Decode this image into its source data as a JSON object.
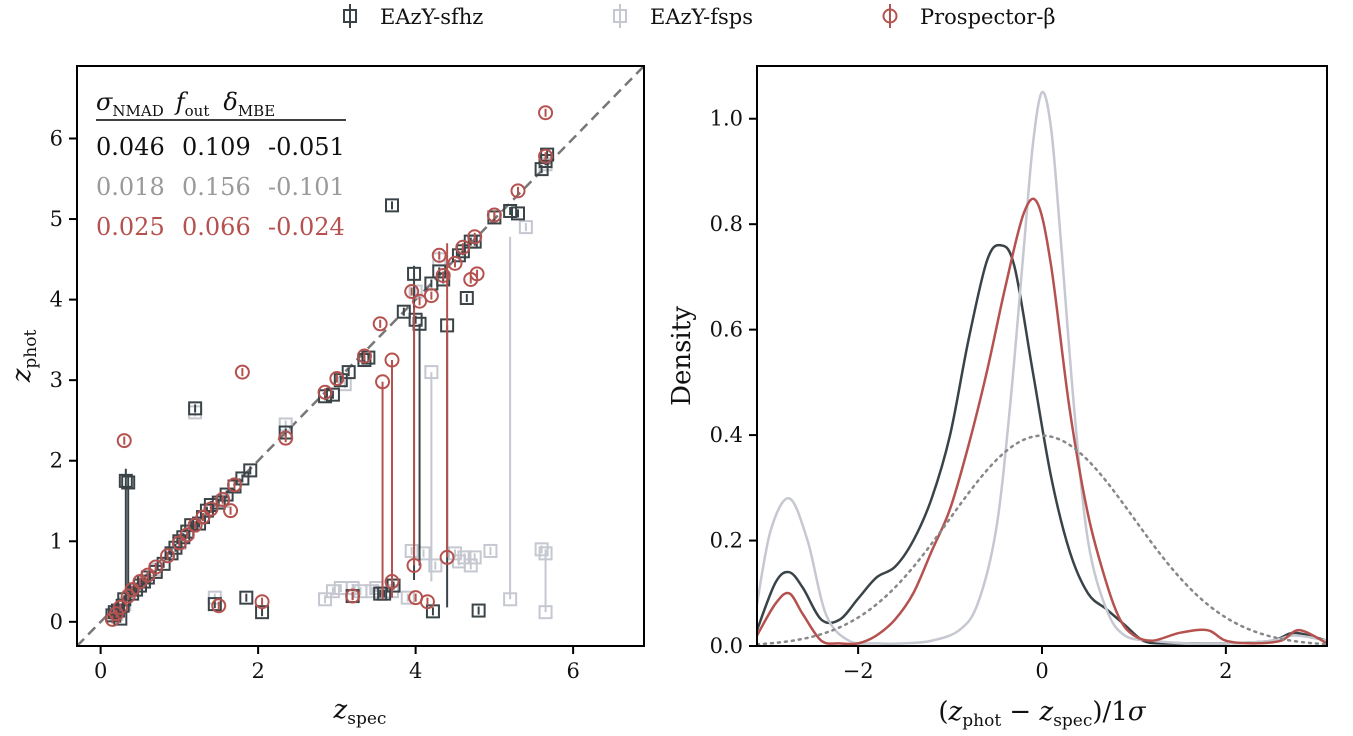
{
  "colors": {
    "sfhz": "#3a4448",
    "fsps": "#c5c8d0",
    "prospector": "#b5524f",
    "diagonal": "#777777",
    "normal": "#888888",
    "stats_header": "#111111"
  },
  "legend": {
    "items": [
      {
        "label": "EAzY-sfhz",
        "marker": "square",
        "color_key": "sfhz"
      },
      {
        "label": "EAzY-fsps",
        "marker": "square",
        "color_key": "fsps"
      },
      {
        "label": "Prospector-β",
        "marker": "circle",
        "color_key": "prospector"
      }
    ]
  },
  "stats": {
    "headers": [
      "σNMAD",
      "fout",
      "δMBE"
    ],
    "rows": [
      {
        "values": [
          "0.046",
          "0.109",
          "-0.051"
        ],
        "color_key": "sfhz"
      },
      {
        "values": [
          "0.018",
          "0.156",
          "-0.101"
        ],
        "color_key": "fsps"
      },
      {
        "values": [
          "0.025",
          "0.066",
          "-0.024"
        ],
        "color_key": "prospector"
      }
    ]
  },
  "chart_data": [
    {
      "type": "scatter",
      "xlabel": "z_spec",
      "ylabel": "z_phot",
      "xlim": [
        -0.3,
        6.9
      ],
      "ylim": [
        -0.3,
        6.9
      ],
      "xticks": [
        "0",
        "2",
        "4",
        "6"
      ],
      "yticks": [
        "0",
        "1",
        "2",
        "3",
        "4",
        "5",
        "6"
      ],
      "diagonal": "1:1 dashed line",
      "series": [
        {
          "name": "EAzY-sfhz",
          "marker": "square",
          "color_key": "sfhz",
          "points": [
            {
              "x": 0.15,
              "y": 0.08
            },
            {
              "x": 0.18,
              "y": 0.12
            },
            {
              "x": 0.22,
              "y": 0.14
            },
            {
              "x": 0.25,
              "y": 0.04
            },
            {
              "x": 0.28,
              "y": 0.2
            },
            {
              "x": 0.3,
              "y": 0.28
            },
            {
              "x": 0.32,
              "y": 1.75,
              "elo": 1.5,
              "ehi": 0.15
            },
            {
              "x": 0.35,
              "y": 1.73,
              "elo": 1.4,
              "ehi": 0.1
            },
            {
              "x": 0.4,
              "y": 0.35
            },
            {
              "x": 0.45,
              "y": 0.4
            },
            {
              "x": 0.5,
              "y": 0.45
            },
            {
              "x": 0.55,
              "y": 0.5
            },
            {
              "x": 0.6,
              "y": 0.55
            },
            {
              "x": 0.7,
              "y": 0.62
            },
            {
              "x": 0.8,
              "y": 0.72
            },
            {
              "x": 0.9,
              "y": 0.85
            },
            {
              "x": 0.95,
              "y": 0.92
            },
            {
              "x": 1.0,
              "y": 1.0
            },
            {
              "x": 1.05,
              "y": 1.05
            },
            {
              "x": 1.1,
              "y": 1.12
            },
            {
              "x": 1.15,
              "y": 1.2
            },
            {
              "x": 1.2,
              "y": 2.65
            },
            {
              "x": 1.25,
              "y": 1.22
            },
            {
              "x": 1.3,
              "y": 1.3
            },
            {
              "x": 1.35,
              "y": 1.38
            },
            {
              "x": 1.4,
              "y": 1.45
            },
            {
              "x": 1.45,
              "y": 0.22
            },
            {
              "x": 1.5,
              "y": 1.48
            },
            {
              "x": 1.6,
              "y": 1.58
            },
            {
              "x": 1.7,
              "y": 1.68
            },
            {
              "x": 1.8,
              "y": 1.78
            },
            {
              "x": 1.85,
              "y": 0.3
            },
            {
              "x": 1.9,
              "y": 1.88
            },
            {
              "x": 2.05,
              "y": 0.12
            },
            {
              "x": 2.35,
              "y": 2.35
            },
            {
              "x": 2.85,
              "y": 2.8
            },
            {
              "x": 2.95,
              "y": 2.82
            },
            {
              "x": 3.05,
              "y": 3.0
            },
            {
              "x": 3.15,
              "y": 3.1
            },
            {
              "x": 3.2,
              "y": 0.32
            },
            {
              "x": 3.35,
              "y": 3.25
            },
            {
              "x": 3.4,
              "y": 3.28
            },
            {
              "x": 3.55,
              "y": 0.35
            },
            {
              "x": 3.6,
              "y": 0.35
            },
            {
              "x": 3.7,
              "y": 5.17
            },
            {
              "x": 3.72,
              "y": 0.45
            },
            {
              "x": 3.85,
              "y": 3.85
            },
            {
              "x": 3.98,
              "y": 4.32,
              "elo": 3.8,
              "ehi": 0.1
            },
            {
              "x": 4.0,
              "y": 3.75
            },
            {
              "x": 4.05,
              "y": 3.7,
              "elo": 3.0,
              "ehi": 0.0
            },
            {
              "x": 4.2,
              "y": 4.2
            },
            {
              "x": 4.22,
              "y": 0.13
            },
            {
              "x": 4.3,
              "y": 4.35
            },
            {
              "x": 4.35,
              "y": 4.25
            },
            {
              "x": 4.4,
              "y": 3.68,
              "elo": 3.5,
              "ehi": 0.0
            },
            {
              "x": 4.55,
              "y": 4.55
            },
            {
              "x": 4.6,
              "y": 4.6
            },
            {
              "x": 4.65,
              "y": 4.02
            },
            {
              "x": 4.7,
              "y": 4.72
            },
            {
              "x": 4.75,
              "y": 4.72
            },
            {
              "x": 4.8,
              "y": 0.14
            },
            {
              "x": 5.0,
              "y": 5.02
            },
            {
              "x": 5.2,
              "y": 5.1
            },
            {
              "x": 5.3,
              "y": 5.07
            },
            {
              "x": 5.6,
              "y": 5.62
            },
            {
              "x": 5.65,
              "y": 5.72
            },
            {
              "x": 5.67,
              "y": 5.8
            }
          ]
        },
        {
          "name": "EAzY-fsps",
          "marker": "square",
          "color_key": "fsps",
          "points": [
            {
              "x": 0.2,
              "y": 0.1
            },
            {
              "x": 0.3,
              "y": 0.22
            },
            {
              "x": 0.5,
              "y": 0.45
            },
            {
              "x": 0.7,
              "y": 0.65
            },
            {
              "x": 1.0,
              "y": 0.98
            },
            {
              "x": 1.2,
              "y": 2.6
            },
            {
              "x": 1.45,
              "y": 0.3
            },
            {
              "x": 1.55,
              "y": 1.5
            },
            {
              "x": 2.35,
              "y": 2.45
            },
            {
              "x": 2.85,
              "y": 0.28
            },
            {
              "x": 2.95,
              "y": 0.38
            },
            {
              "x": 3.05,
              "y": 0.42
            },
            {
              "x": 3.1,
              "y": 2.95
            },
            {
              "x": 3.2,
              "y": 0.42
            },
            {
              "x": 3.3,
              "y": 0.38
            },
            {
              "x": 3.45,
              "y": 0.38
            },
            {
              "x": 3.5,
              "y": 0.42
            },
            {
              "x": 3.7,
              "y": 0.38
            },
            {
              "x": 3.9,
              "y": 0.3
            },
            {
              "x": 3.95,
              "y": 0.88
            },
            {
              "x": 4.0,
              "y": 4.1
            },
            {
              "x": 4.1,
              "y": 0.85
            },
            {
              "x": 4.2,
              "y": 3.1,
              "elo": 2.6,
              "ehi": 0.0
            },
            {
              "x": 4.25,
              "y": 0.7
            },
            {
              "x": 4.3,
              "y": 4.5
            },
            {
              "x": 4.5,
              "y": 0.85
            },
            {
              "x": 4.55,
              "y": 0.75
            },
            {
              "x": 4.62,
              "y": 0.8
            },
            {
              "x": 4.7,
              "y": 0.7
            },
            {
              "x": 4.75,
              "y": 0.8
            },
            {
              "x": 4.95,
              "y": 0.88
            },
            {
              "x": 5.2,
              "y": 0.28,
              "elo": 0.0,
              "ehi": 4.5
            },
            {
              "x": 5.4,
              "y": 4.9
            },
            {
              "x": 5.6,
              "y": 0.9
            },
            {
              "x": 5.65,
              "y": 0.12,
              "elo": 0.0,
              "ehi": 0.7
            },
            {
              "x": 5.65,
              "y": 0.85
            },
            {
              "x": 5.65,
              "y": 5.68
            }
          ]
        },
        {
          "name": "Prospector-β",
          "marker": "circle",
          "color_key": "prospector",
          "points": [
            {
              "x": 0.15,
              "y": 0.03
            },
            {
              "x": 0.2,
              "y": 0.1
            },
            {
              "x": 0.25,
              "y": 0.18
            },
            {
              "x": 0.3,
              "y": 2.25
            },
            {
              "x": 0.35,
              "y": 0.32
            },
            {
              "x": 0.4,
              "y": 0.4
            },
            {
              "x": 0.5,
              "y": 0.5
            },
            {
              "x": 0.6,
              "y": 0.58
            },
            {
              "x": 0.7,
              "y": 0.68
            },
            {
              "x": 0.85,
              "y": 0.82
            },
            {
              "x": 1.0,
              "y": 0.98
            },
            {
              "x": 1.1,
              "y": 1.08
            },
            {
              "x": 1.2,
              "y": 1.2
            },
            {
              "x": 1.3,
              "y": 1.3
            },
            {
              "x": 1.4,
              "y": 1.4
            },
            {
              "x": 1.5,
              "y": 0.2
            },
            {
              "x": 1.55,
              "y": 1.52
            },
            {
              "x": 1.65,
              "y": 1.38
            },
            {
              "x": 1.7,
              "y": 1.7
            },
            {
              "x": 1.8,
              "y": 3.1
            },
            {
              "x": 2.05,
              "y": 0.25
            },
            {
              "x": 2.35,
              "y": 2.28
            },
            {
              "x": 2.85,
              "y": 2.85
            },
            {
              "x": 3.0,
              "y": 3.02
            },
            {
              "x": 3.2,
              "y": 0.32
            },
            {
              "x": 3.35,
              "y": 3.3
            },
            {
              "x": 3.55,
              "y": 3.7
            },
            {
              "x": 3.58,
              "y": 2.98,
              "elo": 2.7,
              "ehi": 0.0
            },
            {
              "x": 3.7,
              "y": 3.25,
              "elo": 2.95,
              "ehi": 0.0
            },
            {
              "x": 3.7,
              "y": 0.5
            },
            {
              "x": 3.95,
              "y": 4.1
            },
            {
              "x": 3.98,
              "y": 0.7,
              "elo": 0.0,
              "ehi": 3.2
            },
            {
              "x": 4.0,
              "y": 0.3
            },
            {
              "x": 4.05,
              "y": 3.98
            },
            {
              "x": 4.15,
              "y": 0.25
            },
            {
              "x": 4.2,
              "y": 4.05
            },
            {
              "x": 4.3,
              "y": 4.55
            },
            {
              "x": 4.35,
              "y": 4.3
            },
            {
              "x": 4.4,
              "y": 0.8,
              "elo": 0.0,
              "ehi": 3.9
            },
            {
              "x": 4.5,
              "y": 4.45
            },
            {
              "x": 4.6,
              "y": 4.65
            },
            {
              "x": 4.7,
              "y": 4.25
            },
            {
              "x": 4.75,
              "y": 4.78
            },
            {
              "x": 4.78,
              "y": 4.32
            },
            {
              "x": 5.0,
              "y": 5.05
            },
            {
              "x": 5.3,
              "y": 5.35
            },
            {
              "x": 5.65,
              "y": 5.78
            },
            {
              "x": 5.65,
              "y": 6.32
            }
          ]
        }
      ]
    },
    {
      "type": "line",
      "xlabel": "(z_phot − z_spec)/1σ",
      "ylabel": "Density",
      "xlim": [
        -3.1,
        3.1
      ],
      "ylim": [
        0.0,
        1.1
      ],
      "xticks": [
        "−2",
        "0",
        "2"
      ],
      "yticks": [
        "0.0",
        "0.2",
        "0.4",
        "0.6",
        "0.8",
        "1.0"
      ],
      "series": [
        {
          "name": "EAzY-sfhz",
          "color_key": "sfhz",
          "style": "solid",
          "x": [
            -3.1,
            -2.9,
            -2.75,
            -2.6,
            -2.4,
            -2.2,
            -2.0,
            -1.8,
            -1.6,
            -1.4,
            -1.2,
            -1.0,
            -0.8,
            -0.6,
            -0.45,
            -0.3,
            -0.1,
            0.1,
            0.3,
            0.5,
            0.7,
            0.9,
            1.1,
            1.3,
            1.6,
            2.0,
            2.5,
            2.75,
            3.1
          ],
          "y": [
            0.03,
            0.12,
            0.14,
            0.11,
            0.05,
            0.05,
            0.09,
            0.13,
            0.15,
            0.2,
            0.28,
            0.4,
            0.58,
            0.73,
            0.76,
            0.72,
            0.52,
            0.32,
            0.18,
            0.1,
            0.07,
            0.04,
            0.01,
            0.005,
            0.005,
            0.005,
            0.01,
            0.025,
            0.01
          ]
        },
        {
          "name": "EAzY-fsps",
          "color_key": "fsps",
          "style": "solid",
          "x": [
            -3.1,
            -2.95,
            -2.75,
            -2.55,
            -2.35,
            -2.1,
            -1.8,
            -1.5,
            -1.2,
            -0.9,
            -0.7,
            -0.5,
            -0.35,
            -0.2,
            -0.1,
            0.0,
            0.1,
            0.2,
            0.35,
            0.5,
            0.7,
            0.9,
            1.2,
            1.6,
            2.0,
            2.5,
            2.75,
            3.1
          ],
          "y": [
            0.08,
            0.22,
            0.28,
            0.2,
            0.06,
            0.01,
            0.005,
            0.005,
            0.01,
            0.03,
            0.08,
            0.22,
            0.45,
            0.75,
            0.95,
            1.05,
            0.98,
            0.78,
            0.45,
            0.2,
            0.07,
            0.02,
            0.01,
            0.005,
            0.005,
            0.01,
            0.02,
            0.01
          ]
        },
        {
          "name": "Prospector-β",
          "color_key": "prospector",
          "style": "solid",
          "x": [
            -3.1,
            -2.9,
            -2.75,
            -2.6,
            -2.4,
            -2.2,
            -2.0,
            -1.8,
            -1.6,
            -1.4,
            -1.2,
            -1.0,
            -0.8,
            -0.6,
            -0.4,
            -0.2,
            -0.05,
            0.1,
            0.3,
            0.5,
            0.7,
            0.85,
            1.0,
            1.2,
            1.5,
            1.8,
            2.0,
            2.3,
            2.6,
            2.8,
            3.1
          ],
          "y": [
            0.02,
            0.08,
            0.1,
            0.06,
            0.01,
            0.005,
            0.005,
            0.02,
            0.05,
            0.1,
            0.18,
            0.26,
            0.38,
            0.52,
            0.68,
            0.82,
            0.84,
            0.72,
            0.45,
            0.25,
            0.12,
            0.05,
            0.02,
            0.01,
            0.025,
            0.03,
            0.01,
            0.005,
            0.01,
            0.03,
            0.005
          ]
        },
        {
          "name": "",
          "color_key": "normal",
          "style": "dotted",
          "gaussian": {
            "mu": 0,
            "sigma": 1
          }
        }
      ]
    }
  ]
}
